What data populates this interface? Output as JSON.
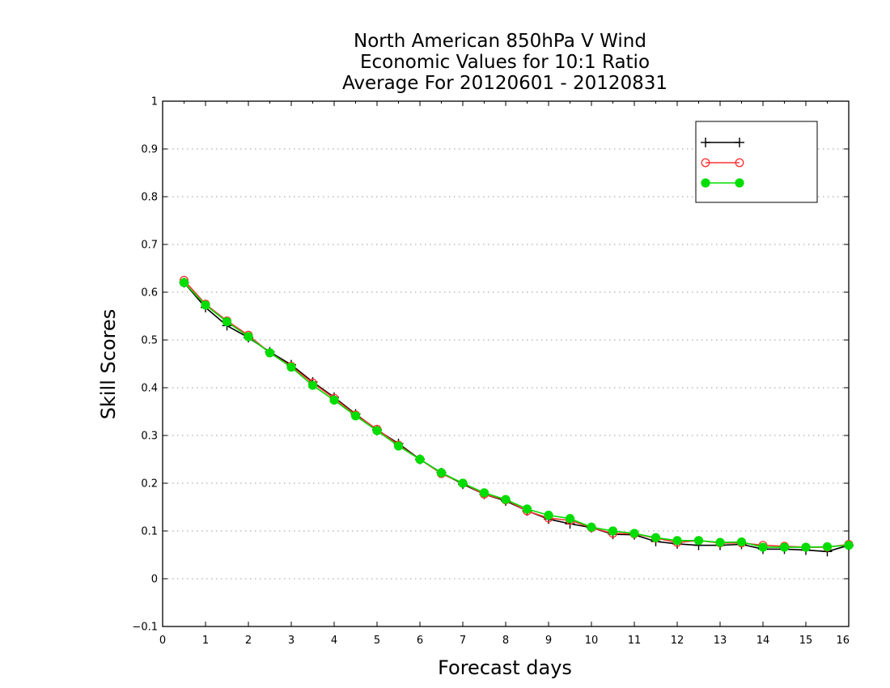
{
  "chart_data": {
    "type": "line",
    "title": [
      "North American 850hPa V Wind",
      "Economic Values for 10:1 Ratio",
      "Average For 20120601 - 20120831"
    ],
    "xlabel": "Forecast days",
    "ylabel": "Skill Scores",
    "xlim": [
      0,
      16
    ],
    "ylim": [
      -0.1,
      1
    ],
    "xticks": [
      "0",
      "1",
      "2",
      "3",
      "4",
      "5",
      "6",
      "7",
      "8",
      "9",
      "10",
      "11",
      "12",
      "13",
      "14",
      "15",
      "16"
    ],
    "yticks": [
      "−0.1",
      "0",
      "0.1",
      "0.2",
      "0.3",
      "0.4",
      "0.5",
      "0.6",
      "0.7",
      "0.8",
      "0.9",
      "1"
    ],
    "grid": true,
    "legend_position": "top-right",
    "x": [
      0.5,
      1,
      1.5,
      2,
      2.5,
      3,
      3.5,
      4,
      4.5,
      5,
      5.5,
      6,
      6.5,
      7,
      7.5,
      8,
      8.5,
      9,
      9.5,
      10,
      10.5,
      11,
      11.5,
      12,
      12.5,
      13,
      13.5,
      14,
      14.5,
      15,
      15.5,
      16
    ],
    "series": [
      {
        "name": "",
        "color": "#000000",
        "marker": "plus",
        "values": [
          0.62,
          0.568,
          0.53,
          0.505,
          0.475,
          0.448,
          0.412,
          0.38,
          0.345,
          0.312,
          0.283,
          0.25,
          0.222,
          0.198,
          0.177,
          0.163,
          0.142,
          0.125,
          0.115,
          0.107,
          0.093,
          0.092,
          0.078,
          0.073,
          0.07,
          0.07,
          0.072,
          0.062,
          0.062,
          0.06,
          0.057,
          0.07
        ]
      },
      {
        "name": "",
        "color": "#ff3333",
        "marker": "open-circle",
        "values": [
          0.625,
          0.575,
          0.54,
          0.51,
          0.473,
          0.445,
          0.41,
          0.378,
          0.343,
          0.313,
          0.28,
          0.25,
          0.22,
          0.2,
          0.177,
          0.165,
          0.142,
          0.127,
          0.122,
          0.107,
          0.095,
          0.094,
          0.085,
          0.076,
          0.08,
          0.075,
          0.075,
          0.07,
          0.068,
          0.066,
          0.066,
          0.072
        ]
      },
      {
        "name": "",
        "color": "#00dd00",
        "marker": "filled-circle",
        "values": [
          0.62,
          0.573,
          0.538,
          0.507,
          0.473,
          0.443,
          0.405,
          0.374,
          0.341,
          0.31,
          0.278,
          0.25,
          0.222,
          0.2,
          0.18,
          0.166,
          0.146,
          0.133,
          0.126,
          0.108,
          0.1,
          0.095,
          0.086,
          0.08,
          0.08,
          0.076,
          0.077,
          0.066,
          0.066,
          0.066,
          0.067,
          0.07
        ]
      }
    ]
  }
}
